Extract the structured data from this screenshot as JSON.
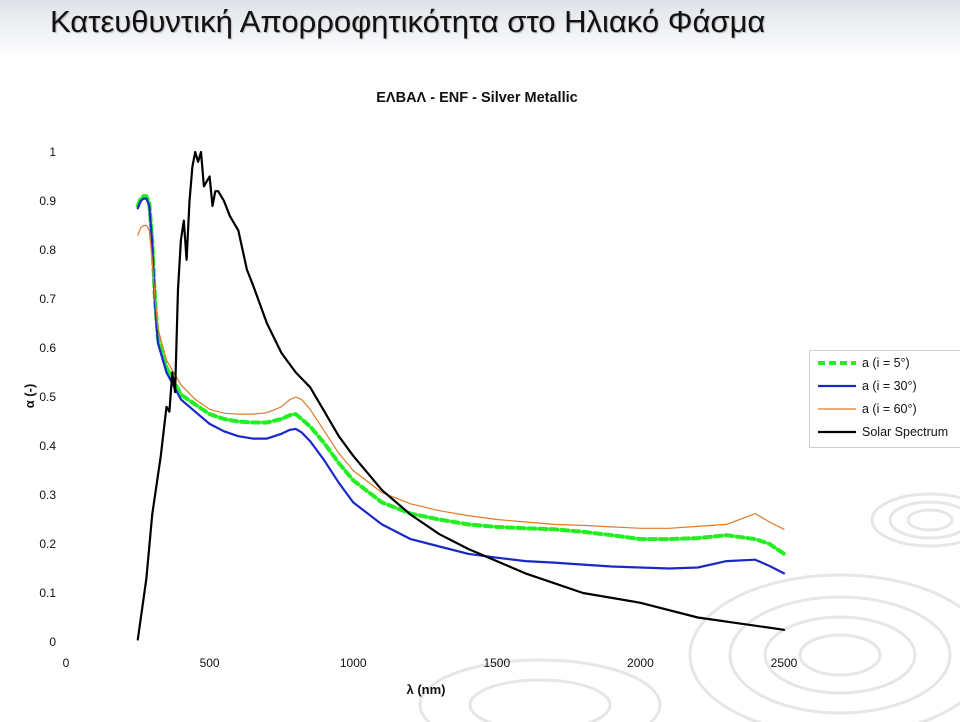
{
  "page_title": "Κατευθυντική Απορροφητικότητα στο Ηλιακό Φάσμα",
  "chart_data": {
    "type": "line",
    "title": "ΕΛΒΑΛ - ENF - Silver Metallic",
    "xlabel": "λ (nm)",
    "ylabel": "α (-)",
    "xlim": [
      0,
      2500
    ],
    "ylim": [
      0,
      1
    ],
    "x_ticks": [
      "0",
      "500",
      "1000",
      "1500",
      "2000",
      "2500"
    ],
    "y_ticks": [
      "0",
      "0.1",
      "0.2",
      "0.3",
      "0.4",
      "0.5",
      "0.6",
      "0.7",
      "0.8",
      "0.9",
      "1"
    ],
    "grid": false,
    "legend_position": "right",
    "series": [
      {
        "name": "a (i = 5°)",
        "color": "#22ee22",
        "style": "dashed",
        "x": [
          250,
          260,
          270,
          280,
          290,
          300,
          310,
          320,
          350,
          400,
          450,
          500,
          550,
          600,
          650,
          700,
          750,
          780,
          800,
          820,
          850,
          900,
          950,
          1000,
          1100,
          1200,
          1300,
          1400,
          1500,
          1600,
          1700,
          1800,
          1900,
          2000,
          2100,
          2200,
          2300,
          2400,
          2450,
          2500
        ],
        "y": [
          0.89,
          0.905,
          0.91,
          0.91,
          0.895,
          0.82,
          0.7,
          0.62,
          0.56,
          0.505,
          0.485,
          0.465,
          0.455,
          0.45,
          0.448,
          0.448,
          0.455,
          0.463,
          0.465,
          0.455,
          0.44,
          0.405,
          0.365,
          0.33,
          0.285,
          0.262,
          0.25,
          0.24,
          0.235,
          0.232,
          0.23,
          0.225,
          0.218,
          0.21,
          0.21,
          0.212,
          0.218,
          0.21,
          0.2,
          0.18
        ]
      },
      {
        "name": "a (i = 30°)",
        "color": "#1a28c8",
        "style": "solid",
        "x": [
          250,
          260,
          270,
          280,
          290,
          300,
          310,
          320,
          350,
          400,
          450,
          500,
          550,
          600,
          650,
          700,
          750,
          780,
          800,
          820,
          850,
          900,
          950,
          1000,
          1100,
          1200,
          1300,
          1400,
          1500,
          1600,
          1700,
          1800,
          1900,
          2000,
          2100,
          2200,
          2300,
          2400,
          2450,
          2500
        ],
        "y": [
          0.885,
          0.9,
          0.905,
          0.905,
          0.89,
          0.815,
          0.69,
          0.61,
          0.55,
          0.495,
          0.47,
          0.445,
          0.43,
          0.42,
          0.415,
          0.415,
          0.425,
          0.433,
          0.435,
          0.428,
          0.41,
          0.37,
          0.325,
          0.285,
          0.24,
          0.21,
          0.195,
          0.18,
          0.172,
          0.165,
          0.162,
          0.158,
          0.154,
          0.152,
          0.15,
          0.152,
          0.165,
          0.168,
          0.155,
          0.14
        ]
      },
      {
        "name": "a (i = 60°)",
        "color": "#e07a2a",
        "style": "thin",
        "x": [
          250,
          260,
          270,
          280,
          290,
          300,
          310,
          320,
          350,
          400,
          450,
          500,
          550,
          600,
          650,
          700,
          750,
          780,
          800,
          820,
          850,
          900,
          950,
          1000,
          1100,
          1200,
          1300,
          1400,
          1500,
          1600,
          1700,
          1800,
          1900,
          2000,
          2100,
          2200,
          2300,
          2400,
          2450,
          2500
        ],
        "y": [
          0.83,
          0.845,
          0.85,
          0.85,
          0.84,
          0.78,
          0.7,
          0.64,
          0.575,
          0.525,
          0.495,
          0.475,
          0.467,
          0.465,
          0.465,
          0.468,
          0.48,
          0.495,
          0.5,
          0.495,
          0.475,
          0.43,
          0.385,
          0.35,
          0.305,
          0.282,
          0.268,
          0.258,
          0.25,
          0.245,
          0.24,
          0.238,
          0.235,
          0.232,
          0.232,
          0.236,
          0.24,
          0.262,
          0.245,
          0.23
        ]
      },
      {
        "name": "Solar Spectrum",
        "color": "#000000",
        "style": "solid",
        "x": [
          250,
          280,
          300,
          330,
          350,
          360,
          370,
          380,
          390,
          400,
          410,
          420,
          430,
          440,
          450,
          460,
          470,
          480,
          490,
          500,
          510,
          520,
          530,
          550,
          570,
          600,
          630,
          650,
          700,
          750,
          800,
          850,
          900,
          950,
          1000,
          1100,
          1200,
          1300,
          1400,
          1500,
          1600,
          1700,
          1800,
          2000,
          2200,
          2500
        ],
        "y": [
          0.005,
          0.13,
          0.26,
          0.38,
          0.48,
          0.47,
          0.55,
          0.51,
          0.72,
          0.82,
          0.86,
          0.78,
          0.9,
          0.97,
          1.0,
          0.98,
          1.0,
          0.93,
          0.94,
          0.95,
          0.89,
          0.92,
          0.92,
          0.9,
          0.87,
          0.84,
          0.76,
          0.73,
          0.65,
          0.59,
          0.55,
          0.52,
          0.47,
          0.42,
          0.38,
          0.31,
          0.26,
          0.22,
          0.19,
          0.165,
          0.14,
          0.12,
          0.1,
          0.08,
          0.05,
          0.025
        ]
      }
    ]
  }
}
